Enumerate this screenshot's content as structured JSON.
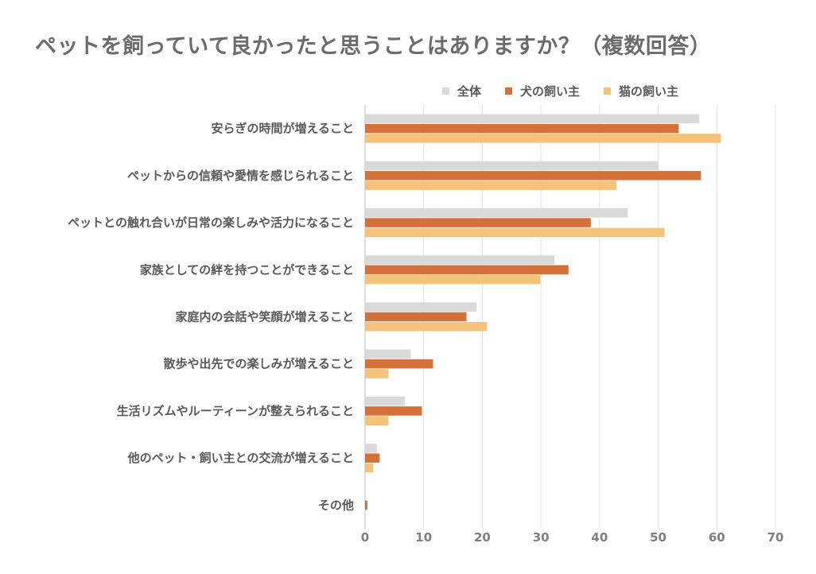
{
  "chart_data": {
    "type": "bar",
    "orientation": "horizontal",
    "title": "ペットを飼っていて良かったと思うことはありますか？（複数回答）",
    "categories": [
      "安らぎの時間が増えること",
      "ペットからの信頼や愛情を感じられること",
      "ペットとの触れ合いが日常の楽しみや活力になること",
      "家族としての絆を持つことができること",
      "家庭内の会話や笑顔が増えること",
      "散歩や出先での楽しみが増えること",
      "生活リズムやルーティーンが整えられること",
      "他のペット・飼い主との交流が増えること",
      "その他"
    ],
    "series": [
      {
        "name": "全体",
        "color": "#d9d9d9",
        "values": [
          57.0,
          50.0,
          44.8,
          32.3,
          19.0,
          7.8,
          6.8,
          2.0,
          0.1
        ]
      },
      {
        "name": "犬の飼い主",
        "color": "#d4703a",
        "values": [
          53.5,
          57.3,
          38.5,
          34.7,
          17.3,
          11.6,
          9.7,
          2.5,
          0.4
        ]
      },
      {
        "name": "猫の飼い主",
        "color": "#f5c27a",
        "values": [
          60.7,
          42.9,
          51.1,
          29.9,
          20.8,
          4.0,
          4.0,
          1.4,
          0.0
        ]
      }
    ],
    "x_ticks": [
      "0",
      "10",
      "20",
      "30",
      "40",
      "50",
      "60",
      "70"
    ],
    "xlim": [
      0,
      70
    ],
    "grid": true,
    "legend_position": "top-right"
  }
}
